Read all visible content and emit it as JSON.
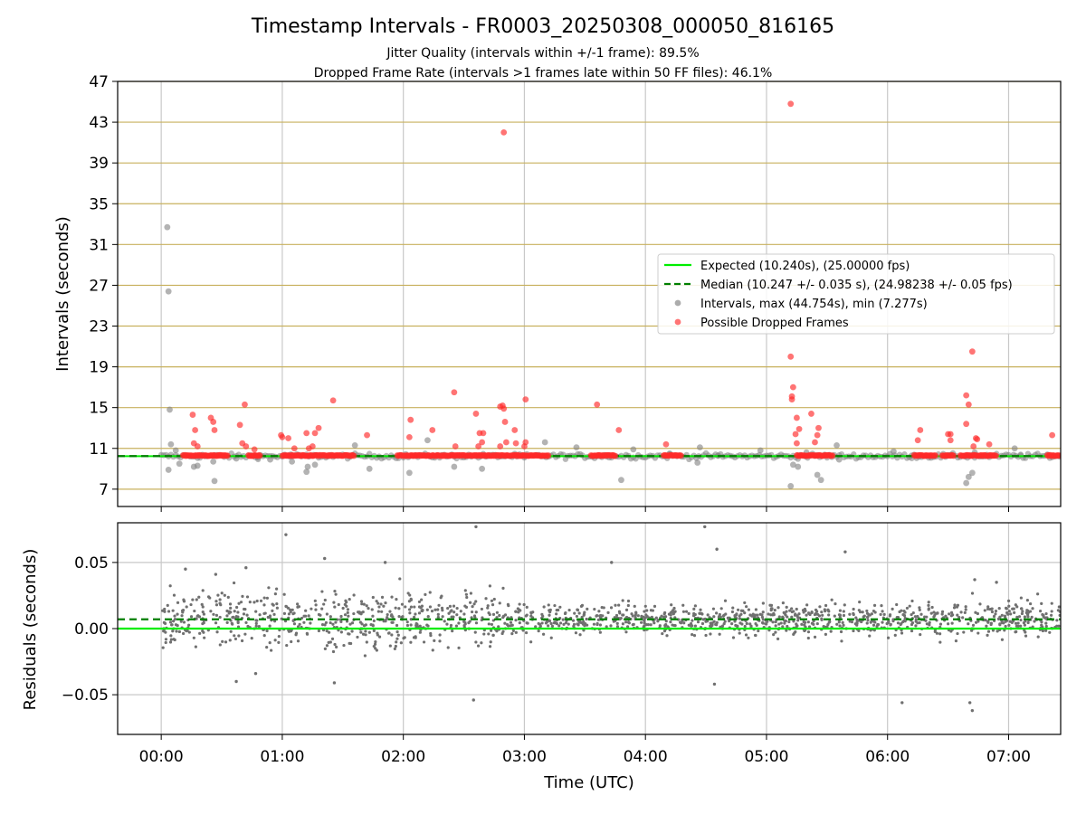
{
  "chart_data": {
    "type": "scatter",
    "title": "Timestamp Intervals - FR0003_20250308_000050_816165",
    "subtitle_lines": [
      "Jitter Quality (intervals within +/-1 frame): 89.5%",
      "Dropped Frame Rate (intervals >1 frames late within 50 FF files): 46.1%"
    ],
    "xlabel": "Time (UTC)",
    "xlim_hours": [
      -0.36,
      7.43
    ],
    "xticks": [
      {
        "value": 0,
        "label": "00:00"
      },
      {
        "value": 1,
        "label": "01:00"
      },
      {
        "value": 2,
        "label": "02:00"
      },
      {
        "value": 3,
        "label": "03:00"
      },
      {
        "value": 4,
        "label": "04:00"
      },
      {
        "value": 5,
        "label": "05:00"
      },
      {
        "value": 6,
        "label": "06:00"
      },
      {
        "value": 7,
        "label": "07:00"
      }
    ],
    "top_panel": {
      "ylabel": "Intervals (seconds)",
      "ylim": [
        5.3,
        47
      ],
      "yticks": [
        7,
        11,
        15,
        19,
        23,
        27,
        31,
        35,
        39,
        43,
        47
      ],
      "hgrid_color": "#c8b15e",
      "expected_interval": 10.24,
      "median_interval": 10.247,
      "legend_position": "center-right",
      "legend": [
        {
          "kind": "line",
          "color": "#00ee00",
          "dash": false,
          "label": "Expected (10.240s), (25.00000 fps)"
        },
        {
          "kind": "line",
          "color": "#007f00",
          "dash": true,
          "label": "Median (10.247 +/- 0.035 s), (24.98238 +/- 0.05 fps)"
        },
        {
          "kind": "dot",
          "color": "#808080",
          "label": "Intervals, max (44.754s), min (7.277s)"
        },
        {
          "kind": "dot",
          "color": "#ff2a2a",
          "label": "Possible Dropped Frames"
        }
      ],
      "normal_points": [
        [
          0.05,
          32.7
        ],
        [
          0.06,
          26.4
        ],
        [
          0.07,
          14.8
        ],
        [
          0.08,
          11.4
        ],
        [
          0.06,
          8.9
        ],
        [
          0.12,
          10.8
        ],
        [
          0.15,
          9.5
        ],
        [
          0.27,
          9.2
        ],
        [
          0.3,
          9.3
        ],
        [
          0.43,
          9.7
        ],
        [
          0.44,
          7.8
        ],
        [
          0.62,
          10.0
        ],
        [
          0.8,
          10.1
        ],
        [
          0.9,
          9.9
        ],
        [
          1.07,
          10.4
        ],
        [
          1.08,
          9.7
        ],
        [
          1.2,
          8.7
        ],
        [
          1.21,
          9.2
        ],
        [
          1.27,
          9.4
        ],
        [
          1.6,
          11.3
        ],
        [
          1.72,
          9.0
        ],
        [
          2.05,
          8.6
        ],
        [
          2.2,
          11.8
        ],
        [
          2.42,
          9.2
        ],
        [
          2.65,
          9.0
        ],
        [
          3.0,
          10.1
        ],
        [
          3.17,
          11.6
        ],
        [
          3.43,
          11.1
        ],
        [
          3.8,
          7.9
        ],
        [
          3.9,
          10.9
        ],
        [
          4.2,
          10.5
        ],
        [
          4.43,
          9.6
        ],
        [
          4.45,
          11.1
        ],
        [
          4.6,
          10.3
        ],
        [
          4.95,
          10.8
        ],
        [
          5.2,
          7.3
        ],
        [
          5.22,
          9.4
        ],
        [
          5.26,
          9.2
        ],
        [
          5.33,
          10.6
        ],
        [
          5.42,
          8.4
        ],
        [
          5.45,
          7.9
        ],
        [
          5.58,
          11.3
        ],
        [
          5.6,
          9.9
        ],
        [
          6.05,
          10.7
        ],
        [
          6.2,
          10.3
        ],
        [
          6.65,
          7.6
        ],
        [
          6.67,
          8.2
        ],
        [
          6.7,
          8.6
        ],
        [
          6.72,
          10.6
        ],
        [
          7.05,
          11.0
        ],
        [
          7.1,
          10.3
        ]
      ],
      "dropped_points": [
        [
          0.26,
          14.3
        ],
        [
          0.28,
          12.8
        ],
        [
          0.27,
          11.5
        ],
        [
          0.3,
          11.2
        ],
        [
          0.41,
          14.0
        ],
        [
          0.43,
          13.6
        ],
        [
          0.44,
          12.8
        ],
        [
          0.65,
          13.3
        ],
        [
          0.67,
          11.5
        ],
        [
          0.69,
          15.3
        ],
        [
          0.7,
          11.2
        ],
        [
          0.77,
          10.9
        ],
        [
          0.99,
          12.3
        ],
        [
          1.0,
          12.1
        ],
        [
          1.05,
          12.0
        ],
        [
          1.1,
          11.0
        ],
        [
          1.2,
          12.5
        ],
        [
          1.22,
          11.0
        ],
        [
          1.25,
          11.2
        ],
        [
          1.27,
          12.5
        ],
        [
          1.3,
          13.0
        ],
        [
          1.42,
          15.7
        ],
        [
          1.7,
          12.3
        ],
        [
          2.05,
          12.1
        ],
        [
          2.06,
          13.8
        ],
        [
          2.24,
          12.8
        ],
        [
          2.42,
          16.5
        ],
        [
          2.43,
          11.2
        ],
        [
          2.6,
          14.4
        ],
        [
          2.62,
          11.2
        ],
        [
          2.63,
          12.5
        ],
        [
          2.65,
          11.6
        ],
        [
          2.66,
          12.5
        ],
        [
          2.8,
          11.2
        ],
        [
          2.8,
          15.1
        ],
        [
          2.82,
          15.2
        ],
        [
          2.83,
          14.9
        ],
        [
          2.84,
          13.6
        ],
        [
          2.83,
          42.0
        ],
        [
          2.85,
          11.6
        ],
        [
          2.92,
          12.8
        ],
        [
          2.93,
          11.5
        ],
        [
          3.0,
          11.2
        ],
        [
          3.01,
          15.8
        ],
        [
          3.01,
          11.6
        ],
        [
          3.6,
          15.3
        ],
        [
          3.78,
          12.8
        ],
        [
          4.17,
          11.4
        ],
        [
          5.2,
          44.8
        ],
        [
          5.2,
          20.0
        ],
        [
          5.22,
          17.0
        ],
        [
          5.21,
          15.8
        ],
        [
          5.21,
          16.1
        ],
        [
          5.25,
          14.0
        ],
        [
          5.24,
          12.4
        ],
        [
          5.25,
          11.5
        ],
        [
          5.27,
          12.9
        ],
        [
          5.37,
          14.4
        ],
        [
          5.4,
          11.6
        ],
        [
          5.42,
          12.3
        ],
        [
          5.43,
          13.0
        ],
        [
          6.25,
          11.8
        ],
        [
          6.27,
          12.8
        ],
        [
          6.5,
          12.4
        ],
        [
          6.52,
          11.8
        ],
        [
          6.52,
          12.4
        ],
        [
          6.65,
          16.2
        ],
        [
          6.65,
          13.4
        ],
        [
          6.67,
          15.3
        ],
        [
          6.7,
          20.5
        ],
        [
          6.71,
          11.2
        ],
        [
          6.73,
          12.0
        ],
        [
          6.74,
          11.9
        ],
        [
          6.84,
          11.4
        ],
        [
          7.36,
          12.3
        ]
      ],
      "dropped_band_segments": [
        [
          0.18,
          0.55
        ],
        [
          0.72,
          0.82
        ],
        [
          1.0,
          1.6
        ],
        [
          1.95,
          3.2
        ],
        [
          3.55,
          3.75
        ],
        [
          4.15,
          4.3
        ],
        [
          5.25,
          5.55
        ],
        [
          6.22,
          6.4
        ],
        [
          6.45,
          6.55
        ],
        [
          6.6,
          6.9
        ],
        [
          7.32,
          7.43
        ]
      ],
      "dropped_band_value": 10.3
    },
    "bottom_panel": {
      "ylabel": "Residuals (seconds)",
      "ylim": [
        -0.08,
        0.08
      ],
      "yticks": [
        {
          "value": 0.05,
          "label": "0.05"
        },
        {
          "value": 0.0,
          "label": "0.00"
        },
        {
          "value": -0.05,
          "label": "−0.05"
        }
      ],
      "expected_residual": 0.0,
      "median_residual": 0.007,
      "outliers": [
        [
          0.2,
          0.045
        ],
        [
          0.45,
          0.041
        ],
        [
          0.62,
          -0.04
        ],
        [
          0.7,
          0.046
        ],
        [
          0.78,
          -0.034
        ],
        [
          1.03,
          0.071
        ],
        [
          1.35,
          0.053
        ],
        [
          1.43,
          -0.041
        ],
        [
          1.85,
          0.05
        ],
        [
          2.58,
          -0.054
        ],
        [
          2.6,
          0.077
        ],
        [
          3.72,
          0.05
        ],
        [
          4.49,
          0.077
        ],
        [
          4.57,
          -0.042
        ],
        [
          4.59,
          0.06
        ],
        [
          5.65,
          0.058
        ],
        [
          6.12,
          -0.056
        ],
        [
          6.68,
          -0.056
        ],
        [
          6.7,
          -0.062
        ],
        [
          6.72,
          0.037
        ],
        [
          6.9,
          0.035
        ]
      ],
      "scatter_spread_by_segment": [
        {
          "from": 0.0,
          "to": 2.9,
          "spread": 0.018
        },
        {
          "from": 2.9,
          "to": 4.8,
          "spread": 0.009
        },
        {
          "from": 4.8,
          "to": 7.43,
          "spread": 0.011
        }
      ],
      "approx_point_count": 1500
    },
    "colors": {
      "expected": "#00ee00",
      "median": "#007f00",
      "normal": "#808080",
      "dropped": "#ff2a2a",
      "grid": "#c8c8c8"
    }
  }
}
